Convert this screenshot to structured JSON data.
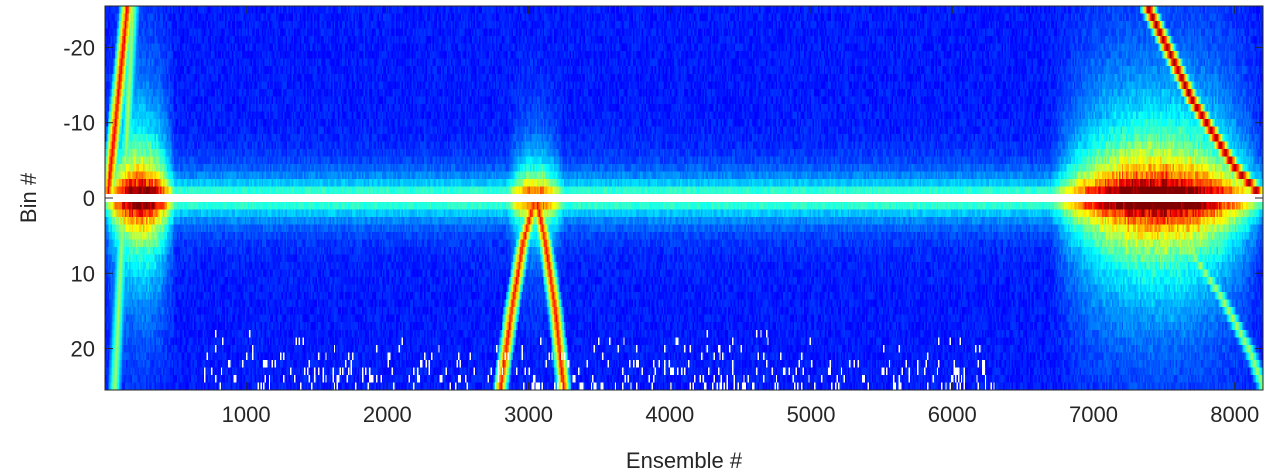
{
  "chart_data": {
    "type": "heatmap",
    "title": "",
    "xlabel": "Ensemble #",
    "ylabel": "Bin #",
    "xlim": [
      1,
      8200
    ],
    "ylim": [
      -25.5,
      25.5
    ],
    "y_reversed": false,
    "colormap": "jet",
    "x_ticks": [
      1000,
      2000,
      3000,
      4000,
      5000,
      6000,
      7000,
      8000
    ],
    "y_ticks": [
      -20,
      -10,
      0,
      10,
      20
    ],
    "x_tick_labels": [
      "1000",
      "2000",
      "3000",
      "4000",
      "5000",
      "6000",
      "7000",
      "8000"
    ],
    "y_tick_labels": [
      "-20",
      "-10",
      "0",
      "10",
      "20"
    ],
    "grid": false,
    "background_intensity": 0.12,
    "center_bin_blank": 0,
    "bright_zones": [
      {
        "x_start": 1,
        "x_end": 500,
        "peak_intensity": 0.72,
        "half_width_bins": 8
      },
      {
        "x_start": 2850,
        "x_end": 3250,
        "peak_intensity": 0.45,
        "half_width_bins": 5
      },
      {
        "x_start": 6700,
        "x_end": 8200,
        "peak_intensity": 0.78,
        "half_width_bins": 9
      }
    ],
    "tracks": [
      {
        "name_hidden": "left-streak-a",
        "points": [
          [
            20,
            0
          ],
          [
            160,
            -25.5
          ]
        ],
        "intensity": 0.9
      },
      {
        "name_hidden": "left-streak-b",
        "points": [
          [
            70,
            25.5
          ],
          [
            200,
            -25.5
          ]
        ],
        "intensity": 0.55
      },
      {
        "name_hidden": "arc-left",
        "points": [
          [
            3040,
            0.5
          ],
          [
            2960,
            6
          ],
          [
            2880,
            15
          ],
          [
            2800,
            25.5
          ]
        ],
        "intensity": 0.88
      },
      {
        "name_hidden": "arc-right",
        "points": [
          [
            3060,
            0.5
          ],
          [
            3120,
            6
          ],
          [
            3190,
            15
          ],
          [
            3250,
            25.5
          ]
        ],
        "intensity": 0.88
      },
      {
        "name_hidden": "right-diagonal",
        "points": [
          [
            7380,
            -25.5
          ],
          [
            7700,
            -13
          ],
          [
            8000,
            -4
          ],
          [
            8200,
            0
          ]
        ],
        "intensity": 1.0
      },
      {
        "name_hidden": "right-lower",
        "points": [
          [
            7650,
            6
          ],
          [
            7900,
            13
          ],
          [
            8100,
            20
          ],
          [
            8200,
            25
          ]
        ],
        "intensity": 0.55
      }
    ],
    "blank_speckle_region": {
      "x_start": 700,
      "x_end": 6300,
      "y_start": 17,
      "y_end": 25.5
    }
  }
}
